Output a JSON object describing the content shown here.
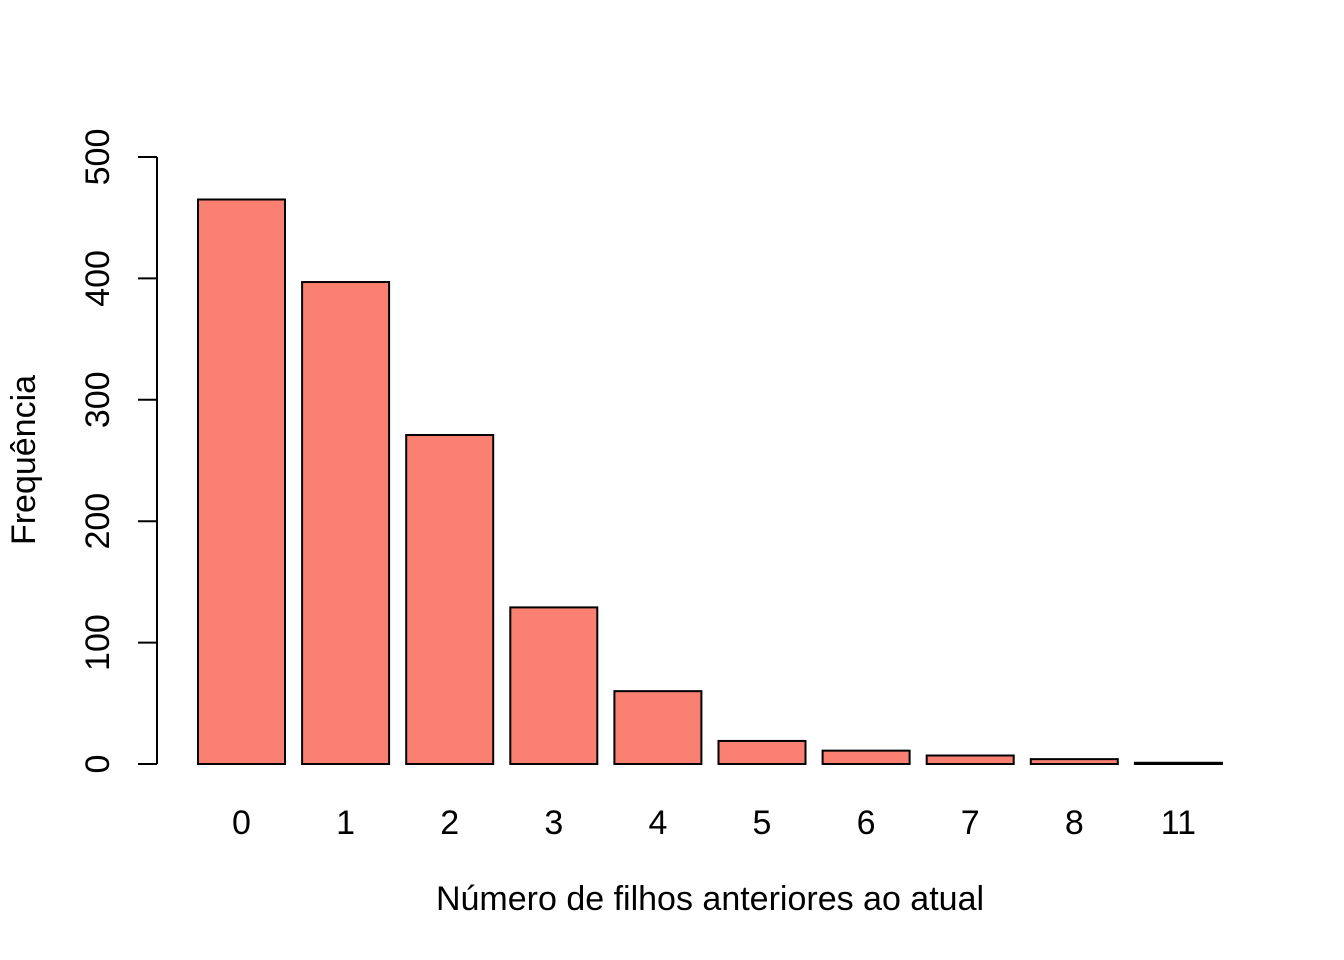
{
  "chart_data": {
    "type": "bar",
    "categories": [
      "0",
      "1",
      "2",
      "3",
      "4",
      "5",
      "6",
      "7",
      "8",
      "11"
    ],
    "values": [
      465,
      397,
      271,
      129,
      60,
      19,
      11,
      7,
      4,
      1
    ],
    "xlabel": "Número de filhos anteriores ao atual",
    "ylabel": "Frequência",
    "ylim": [
      0,
      500
    ],
    "yticks": [
      0,
      100,
      200,
      300,
      400,
      500
    ],
    "bar_color": "#FA8072",
    "bar_border_color": "#000000",
    "grid": false
  }
}
